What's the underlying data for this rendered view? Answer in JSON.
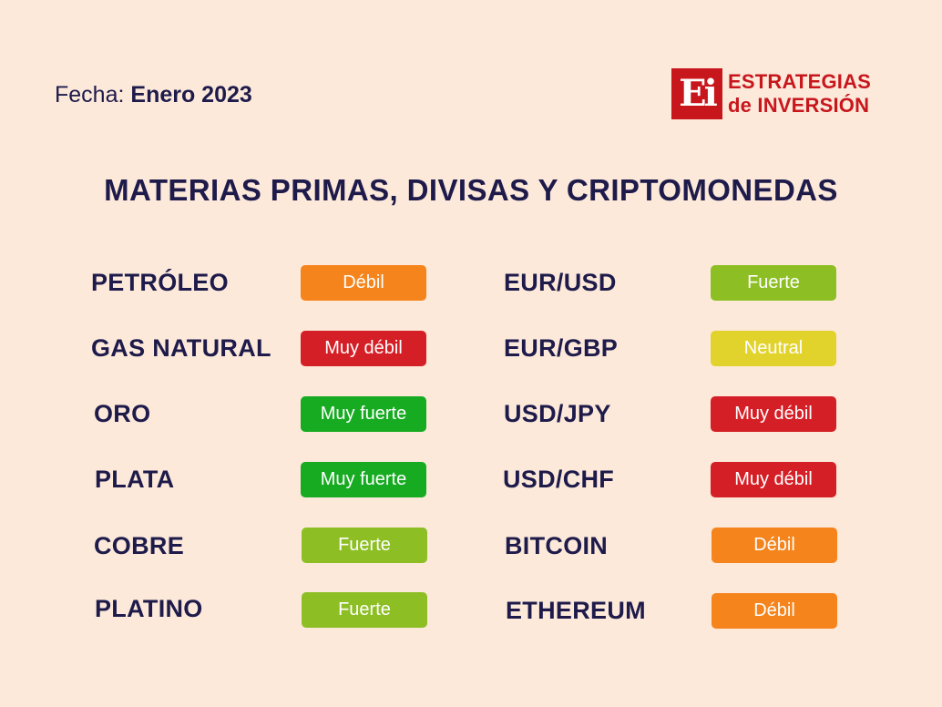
{
  "header": {
    "date_label": "Fecha:",
    "date_value": "Enero 2023"
  },
  "logo": {
    "mark": "Ei",
    "line1": "ESTRATEGIAS",
    "line2": "de INVERSIÓN"
  },
  "title": "MATERIAS PRIMAS, DIVISAS Y CRIPTOMONEDAS",
  "left_items": [
    {
      "name": "PETRÓLEO",
      "status": "Débil",
      "color": "#f6841c"
    },
    {
      "name": "GAS NATURAL",
      "status": "Muy débil",
      "color": "#d51f26"
    },
    {
      "name": "ORO",
      "status": "Muy fuerte",
      "color": "#17ab22"
    },
    {
      "name": "PLATA",
      "status": "Muy fuerte",
      "color": "#17ab22"
    },
    {
      "name": "COBRE",
      "status": "Fuerte",
      "color": "#8dbf25"
    },
    {
      "name": "PLATINO",
      "status": "Fuerte",
      "color": "#8dbf25"
    }
  ],
  "right_items": [
    {
      "name": "EUR/USD",
      "status": "Fuerte",
      "color": "#8dbf25"
    },
    {
      "name": "EUR/GBP",
      "status": "Neutral",
      "color": "#e2d32c"
    },
    {
      "name": "USD/JPY",
      "status": "Muy débil",
      "color": "#d51f26"
    },
    {
      "name": "USD/CHF",
      "status": "Muy débil",
      "color": "#d51f26"
    },
    {
      "name": "BITCOIN",
      "status": "Débil",
      "color": "#f6841c"
    },
    {
      "name": "ETHEREUM",
      "status": "Débil",
      "color": "#f6841c"
    }
  ]
}
